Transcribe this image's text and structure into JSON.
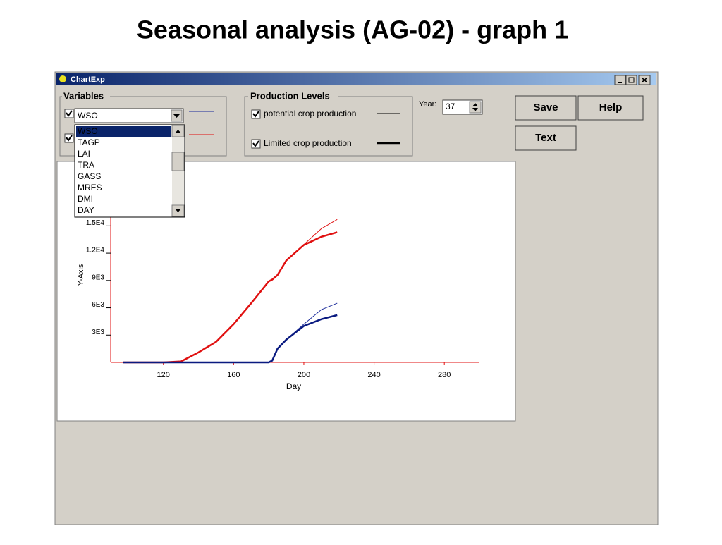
{
  "slide_title": "Seasonal analysis  (AG-02) - graph 1",
  "window": {
    "title": "ChartExp"
  },
  "variables": {
    "label": "Variables",
    "selected": "WSO",
    "dropdown_options": [
      "WSO",
      "TAGP",
      "LAI",
      "TRA",
      "GASS",
      "MRES",
      "DMI",
      "DAY"
    ]
  },
  "production_levels": {
    "label": "Production Levels",
    "items": [
      "potential crop production",
      "Limited crop production"
    ]
  },
  "year": {
    "label": "Year:",
    "value": "37"
  },
  "buttons": [
    "Save",
    "Help",
    "Text"
  ],
  "chart_data": {
    "type": "line",
    "x_label": "Day",
    "y_label": "Y-Axis",
    "xlim": [
      90,
      300
    ],
    "xticks": [
      120,
      160,
      200,
      240,
      280
    ],
    "ylim": [
      0,
      22000
    ],
    "yticks": [
      {
        "value": 3000,
        "label": "3E3"
      },
      {
        "value": 6000,
        "label": "6E3"
      },
      {
        "value": 9000,
        "label": "9E3"
      },
      {
        "value": 12000,
        "label": "1.2E4"
      },
      {
        "value": 15000,
        "label": "1.5E4"
      }
    ],
    "x": [
      97,
      110,
      120,
      130,
      140,
      150,
      160,
      170,
      180,
      182,
      185,
      190,
      200,
      210,
      219
    ],
    "series": [
      {
        "color": "#e01010",
        "width": 1,
        "values": [
          0,
          0,
          0,
          100,
          1100,
          2260,
          4200,
          6500,
          8900,
          9100,
          9600,
          11200,
          12950,
          14700,
          15700
        ]
      },
      {
        "color": "#e01010",
        "width": 2.5,
        "values": [
          0,
          0,
          0,
          100,
          1100,
          2260,
          4200,
          6500,
          8900,
          9100,
          9600,
          11200,
          12900,
          13800,
          14300
        ]
      },
      {
        "color": "#1a2a9a",
        "width": 1,
        "values": [
          0,
          0,
          0,
          0,
          0,
          0,
          0,
          0,
          0,
          200,
          1500,
          2500,
          4200,
          5800,
          6500
        ]
      },
      {
        "color": "#0a1a80",
        "width": 2.5,
        "values": [
          0,
          0,
          0,
          0,
          0,
          0,
          0,
          0,
          0,
          200,
          1500,
          2500,
          4000,
          4750,
          5200
        ]
      }
    ],
    "axis_color": "#e01010"
  }
}
